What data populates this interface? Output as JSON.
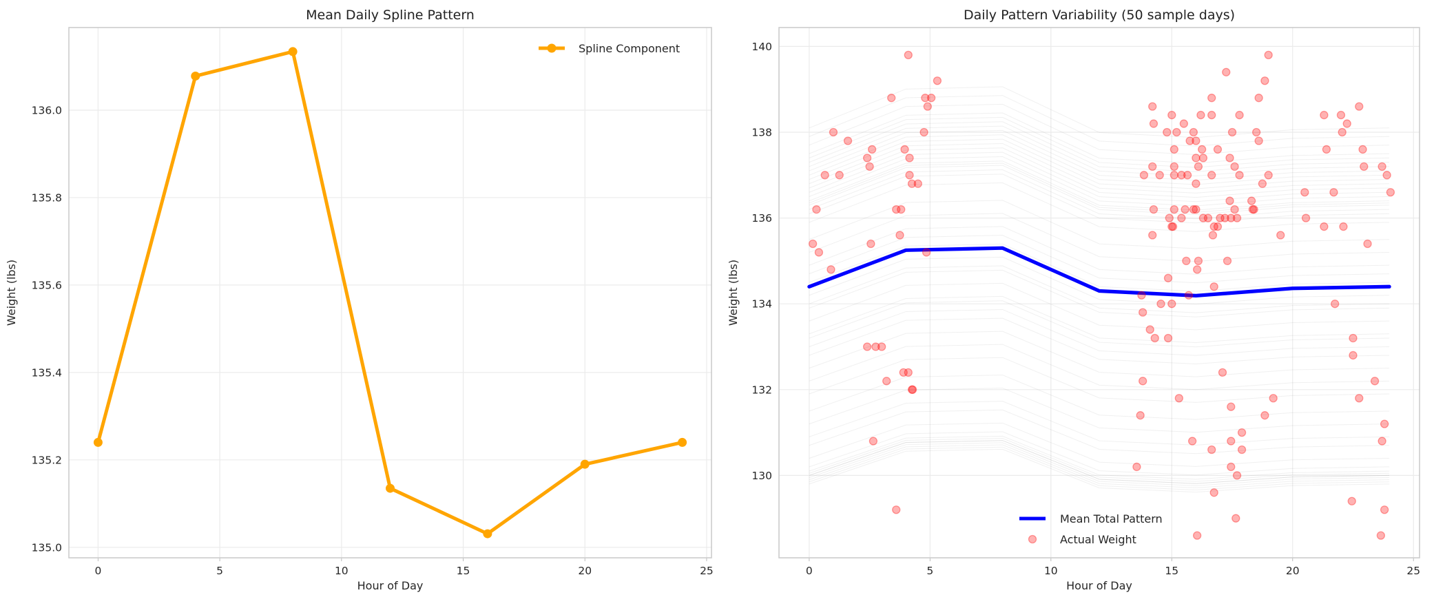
{
  "chart_data": [
    {
      "type": "line",
      "title": "Mean Daily Spline Pattern",
      "xlabel": "Hour of Day",
      "ylabel": "Weight (lbs)",
      "xlim": [
        -1.2,
        25.2
      ],
      "ylim": [
        134.976,
        136.189
      ],
      "xticks": [
        0,
        5,
        10,
        15,
        20,
        25
      ],
      "yticks": [
        135.0,
        135.2,
        135.4,
        135.6,
        135.8,
        136.0
      ],
      "ytick_labels": [
        "135.0",
        "135.2",
        "135.4",
        "135.6",
        "135.8",
        "136.0"
      ],
      "grid": true,
      "legend_placement": "top-right",
      "series": [
        {
          "name": "Spline Component",
          "color": "#FFA500",
          "marker": "circle",
          "x": [
            0,
            4,
            8,
            12,
            16,
            20,
            24
          ],
          "y": [
            135.24,
            136.078,
            136.134,
            135.135,
            135.031,
            135.19,
            135.24
          ]
        }
      ]
    },
    {
      "type": "line",
      "title": "Daily Pattern Variability (50 sample days)",
      "xlabel": "Hour of Day",
      "ylabel": "Weight (lbs)",
      "xlim": [
        -1.25,
        25.25
      ],
      "ylim": [
        128.08,
        140.44
      ],
      "xticks": [
        0,
        5,
        10,
        15,
        20,
        25
      ],
      "yticks": [
        130,
        132,
        134,
        136,
        138,
        140
      ],
      "grid": true,
      "legend_placement": "lower center",
      "sample_days": {
        "color": "#808080",
        "x": [
          0,
          4,
          8,
          12,
          16,
          20,
          24
        ],
        "start_weights": [
          138.1,
          137.9,
          137.7,
          137.5,
          137.4,
          137.3,
          137.2,
          137.1,
          137.0,
          136.9,
          136.8,
          136.7,
          136.6,
          136.5,
          136.4,
          136.35,
          136.3,
          136.2,
          136.1,
          135.9,
          135.5,
          135.2,
          134.9,
          134.7,
          134.5,
          134.2,
          133.9,
          133.6,
          133.3,
          133.0,
          132.8,
          132.5,
          132.2,
          131.9,
          131.5,
          131.2,
          130.9,
          130.7,
          130.4,
          130.2,
          130.1,
          130.05,
          130.0,
          130.0,
          129.95,
          129.9,
          129.85,
          129.8,
          134.0,
          133.2
        ]
      },
      "series": [
        {
          "name": "Mean Total Pattern",
          "color": "#0000FF",
          "x": [
            0,
            4,
            8,
            12,
            16,
            20,
            24
          ],
          "y": [
            134.4,
            135.25,
            135.3,
            134.3,
            134.19,
            134.36,
            134.4
          ]
        },
        {
          "name": "Actual Weight",
          "type": "scatter",
          "color": "#FF0000",
          "points": [
            [
              0.15,
              135.4
            ],
            [
              0.3,
              136.2
            ],
            [
              0.4,
              135.2
            ],
            [
              0.65,
              137.0
            ],
            [
              0.9,
              134.8
            ],
            [
              1.0,
              138.0
            ],
            [
              1.25,
              137.0
            ],
            [
              1.6,
              137.8
            ],
            [
              2.4,
              137.4
            ],
            [
              2.5,
              137.2
            ],
            [
              2.6,
              137.6
            ],
            [
              2.55,
              135.4
            ],
            [
              2.4,
              133.0
            ],
            [
              2.75,
              133.0
            ],
            [
              3.0,
              133.0
            ],
            [
              2.65,
              130.8
            ],
            [
              3.2,
              132.2
            ],
            [
              3.4,
              138.8
            ],
            [
              3.75,
              135.6
            ],
            [
              3.6,
              136.2
            ],
            [
              3.8,
              136.2
            ],
            [
              3.6,
              129.2
            ],
            [
              3.95,
              137.6
            ],
            [
              4.1,
              139.8
            ],
            [
              4.15,
              137.4
            ],
            [
              4.15,
              137.0
            ],
            [
              4.25,
              136.8
            ],
            [
              4.5,
              136.8
            ],
            [
              3.9,
              132.4
            ],
            [
              4.1,
              132.4
            ],
            [
              4.25,
              132.0
            ],
            [
              4.28,
              132.0
            ],
            [
              4.75,
              138.0
            ],
            [
              4.8,
              138.8
            ],
            [
              4.9,
              138.6
            ],
            [
              5.05,
              138.8
            ],
            [
              5.3,
              139.2
            ],
            [
              4.85,
              135.2
            ],
            [
              14.2,
              138.6
            ],
            [
              14.25,
              138.2
            ],
            [
              13.85,
              137.0
            ],
            [
              14.2,
              137.2
            ],
            [
              14.5,
              137.0
            ],
            [
              14.8,
              138.0
            ],
            [
              15.0,
              138.4
            ],
            [
              15.2,
              138.0
            ],
            [
              15.5,
              138.2
            ],
            [
              15.75,
              137.8
            ],
            [
              15.9,
              138.0
            ],
            [
              16.0,
              137.8
            ],
            [
              16.2,
              138.4
            ],
            [
              16.65,
              138.8
            ],
            [
              16.65,
              138.4
            ],
            [
              17.25,
              139.4
            ],
            [
              17.5,
              138.0
            ],
            [
              17.8,
              138.4
            ],
            [
              18.6,
              138.8
            ],
            [
              18.85,
              139.2
            ],
            [
              19.0,
              139.8
            ],
            [
              18.5,
              138.0
            ],
            [
              18.6,
              137.8
            ],
            [
              15.1,
              137.6
            ],
            [
              15.1,
              137.2
            ],
            [
              15.1,
              137.0
            ],
            [
              15.4,
              137.0
            ],
            [
              15.65,
              137.0
            ],
            [
              16.0,
              137.4
            ],
            [
              16.25,
              137.6
            ],
            [
              16.3,
              137.4
            ],
            [
              16.1,
              137.2
            ],
            [
              16.0,
              136.8
            ],
            [
              16.65,
              137.0
            ],
            [
              16.9,
              137.6
            ],
            [
              17.4,
              137.4
            ],
            [
              17.6,
              137.2
            ],
            [
              17.8,
              137.0
            ],
            [
              17.4,
              136.4
            ],
            [
              17.2,
              136.0
            ],
            [
              17.45,
              136.0
            ],
            [
              17.6,
              136.2
            ],
            [
              17.0,
              136.0
            ],
            [
              17.7,
              136.0
            ],
            [
              18.3,
              136.4
            ],
            [
              18.35,
              136.2
            ],
            [
              19.0,
              137.0
            ],
            [
              19.5,
              135.6
            ],
            [
              18.75,
              136.8
            ],
            [
              14.25,
              136.2
            ],
            [
              14.2,
              135.6
            ],
            [
              14.9,
              136.0
            ],
            [
              15.1,
              136.2
            ],
            [
              15.0,
              135.8
            ],
            [
              15.05,
              135.8
            ],
            [
              15.4,
              136.0
            ],
            [
              15.55,
              136.2
            ],
            [
              15.9,
              136.2
            ],
            [
              16.0,
              136.2
            ],
            [
              16.3,
              136.0
            ],
            [
              16.75,
              135.8
            ],
            [
              16.9,
              135.8
            ],
            [
              16.7,
              135.6
            ],
            [
              15.6,
              135.0
            ],
            [
              16.1,
              135.0
            ],
            [
              16.05,
              134.8
            ],
            [
              17.3,
              135.0
            ],
            [
              16.75,
              134.4
            ],
            [
              14.85,
              134.6
            ],
            [
              15.7,
              134.2
            ],
            [
              13.75,
              134.2
            ],
            [
              13.8,
              133.8
            ],
            [
              14.55,
              134.0
            ],
            [
              15.0,
              134.0
            ],
            [
              14.1,
              133.4
            ],
            [
              14.3,
              133.2
            ],
            [
              14.85,
              133.2
            ],
            [
              13.8,
              132.2
            ],
            [
              13.7,
              131.4
            ],
            [
              15.3,
              131.8
            ],
            [
              17.1,
              132.4
            ],
            [
              17.45,
              131.6
            ],
            [
              13.55,
              130.2
            ],
            [
              15.85,
              130.8
            ],
            [
              17.45,
              130.8
            ],
            [
              16.65,
              130.6
            ],
            [
              17.9,
              131.0
            ],
            [
              17.9,
              130.6
            ],
            [
              17.45,
              130.2
            ],
            [
              17.7,
              130.0
            ],
            [
              16.75,
              129.6
            ],
            [
              17.65,
              129.0
            ],
            [
              16.05,
              128.6
            ],
            [
              18.85,
              131.4
            ],
            [
              19.2,
              131.8
            ],
            [
              16.5,
              136.0
            ],
            [
              18.4,
              136.2
            ],
            [
              20.55,
              136.0
            ],
            [
              20.5,
              136.6
            ],
            [
              21.3,
              138.4
            ],
            [
              21.4,
              137.6
            ],
            [
              21.3,
              135.8
            ],
            [
              21.7,
              136.6
            ],
            [
              21.75,
              134.0
            ],
            [
              22.0,
              138.4
            ],
            [
              22.05,
              138.0
            ],
            [
              22.1,
              135.8
            ],
            [
              22.25,
              138.2
            ],
            [
              22.5,
              133.2
            ],
            [
              22.5,
              132.8
            ],
            [
              22.45,
              129.4
            ],
            [
              22.75,
              138.6
            ],
            [
              22.9,
              137.6
            ],
            [
              22.95,
              137.2
            ],
            [
              23.1,
              135.4
            ],
            [
              23.4,
              132.2
            ],
            [
              22.75,
              131.8
            ],
            [
              23.7,
              137.2
            ],
            [
              23.9,
              137.0
            ],
            [
              24.05,
              136.6
            ],
            [
              23.7,
              130.8
            ],
            [
              23.8,
              131.2
            ],
            [
              23.8,
              129.2
            ],
            [
              23.65,
              128.6
            ]
          ]
        }
      ]
    }
  ]
}
